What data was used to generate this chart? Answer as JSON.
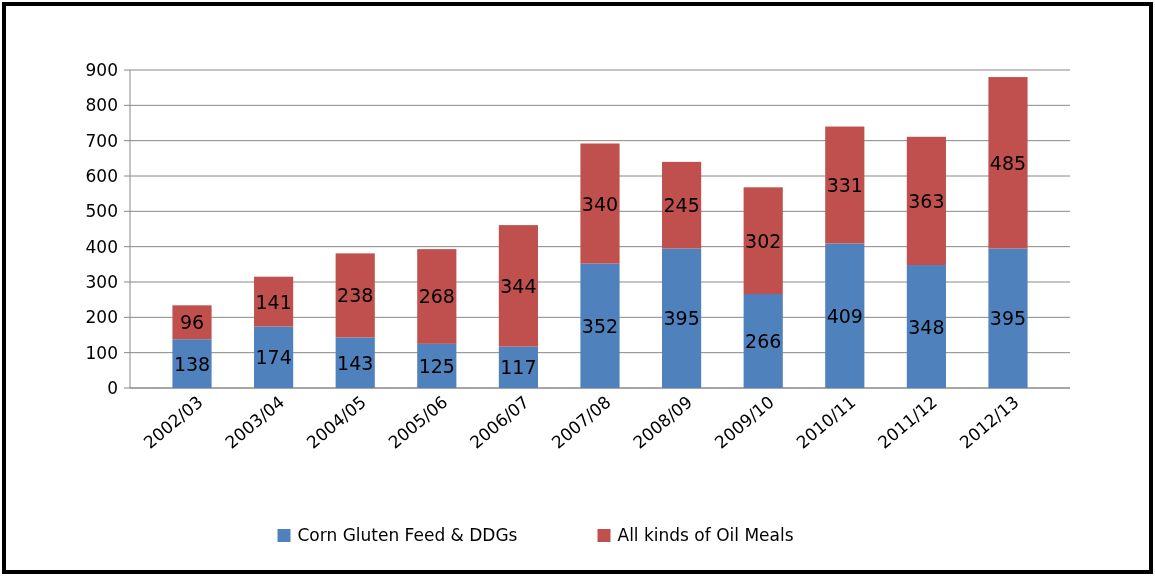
{
  "chart_data": {
    "type": "bar",
    "stacked": true,
    "categories": [
      "2002/03",
      "2003/04",
      "2004/05",
      "2005/06",
      "2006/07",
      "2007/08",
      "2008/09",
      "2009/10",
      "2010/11",
      "2011/12",
      "2012/13"
    ],
    "series": [
      {
        "name": "Corn Gluten Feed & DDGs",
        "color": "#4f81bd",
        "values": [
          138,
          174,
          143,
          125,
          117,
          352,
          395,
          266,
          409,
          348,
          395
        ]
      },
      {
        "name": "All kinds of Oil Meals",
        "color": "#c0504d",
        "values": [
          96,
          141,
          238,
          268,
          344,
          340,
          245,
          302,
          331,
          363,
          485
        ]
      }
    ],
    "ylim": [
      0,
      900
    ],
    "yticks": [
      0,
      100,
      200,
      300,
      400,
      500,
      600,
      700,
      800,
      900
    ],
    "grid": "y",
    "legend": "bottom",
    "data_labels": true
  }
}
